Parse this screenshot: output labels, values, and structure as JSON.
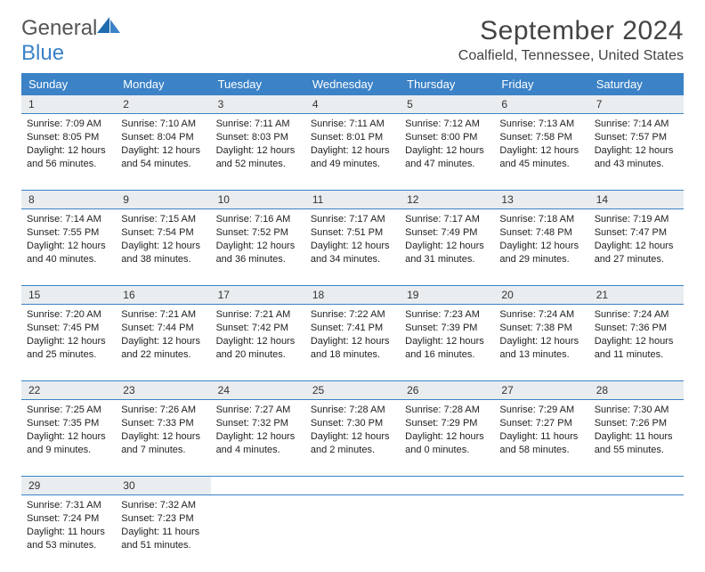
{
  "brand": {
    "part1": "General",
    "part2": "Blue"
  },
  "title": "September 2024",
  "location": "Coalfield, Tennessee, United States",
  "colors": {
    "header_bg": "#3b82c7",
    "header_text": "#ffffff",
    "daynum_bg": "#e9edf0",
    "border": "#3b82c7",
    "text": "#222222",
    "logo_gray": "#555555",
    "logo_blue": "#3b82c7"
  },
  "typography": {
    "title_fontsize": 30,
    "location_fontsize": 16,
    "header_fontsize": 13,
    "daynum_fontsize": 12,
    "detail_fontsize": 11
  },
  "weekday_labels": [
    "Sunday",
    "Monday",
    "Tuesday",
    "Wednesday",
    "Thursday",
    "Friday",
    "Saturday"
  ],
  "weeks": [
    [
      {
        "num": "1",
        "sunrise": "Sunrise: 7:09 AM",
        "sunset": "Sunset: 8:05 PM",
        "daylight": "Daylight: 12 hours and 56 minutes."
      },
      {
        "num": "2",
        "sunrise": "Sunrise: 7:10 AM",
        "sunset": "Sunset: 8:04 PM",
        "daylight": "Daylight: 12 hours and 54 minutes."
      },
      {
        "num": "3",
        "sunrise": "Sunrise: 7:11 AM",
        "sunset": "Sunset: 8:03 PM",
        "daylight": "Daylight: 12 hours and 52 minutes."
      },
      {
        "num": "4",
        "sunrise": "Sunrise: 7:11 AM",
        "sunset": "Sunset: 8:01 PM",
        "daylight": "Daylight: 12 hours and 49 minutes."
      },
      {
        "num": "5",
        "sunrise": "Sunrise: 7:12 AM",
        "sunset": "Sunset: 8:00 PM",
        "daylight": "Daylight: 12 hours and 47 minutes."
      },
      {
        "num": "6",
        "sunrise": "Sunrise: 7:13 AM",
        "sunset": "Sunset: 7:58 PM",
        "daylight": "Daylight: 12 hours and 45 minutes."
      },
      {
        "num": "7",
        "sunrise": "Sunrise: 7:14 AM",
        "sunset": "Sunset: 7:57 PM",
        "daylight": "Daylight: 12 hours and 43 minutes."
      }
    ],
    [
      {
        "num": "8",
        "sunrise": "Sunrise: 7:14 AM",
        "sunset": "Sunset: 7:55 PM",
        "daylight": "Daylight: 12 hours and 40 minutes."
      },
      {
        "num": "9",
        "sunrise": "Sunrise: 7:15 AM",
        "sunset": "Sunset: 7:54 PM",
        "daylight": "Daylight: 12 hours and 38 minutes."
      },
      {
        "num": "10",
        "sunrise": "Sunrise: 7:16 AM",
        "sunset": "Sunset: 7:52 PM",
        "daylight": "Daylight: 12 hours and 36 minutes."
      },
      {
        "num": "11",
        "sunrise": "Sunrise: 7:17 AM",
        "sunset": "Sunset: 7:51 PM",
        "daylight": "Daylight: 12 hours and 34 minutes."
      },
      {
        "num": "12",
        "sunrise": "Sunrise: 7:17 AM",
        "sunset": "Sunset: 7:49 PM",
        "daylight": "Daylight: 12 hours and 31 minutes."
      },
      {
        "num": "13",
        "sunrise": "Sunrise: 7:18 AM",
        "sunset": "Sunset: 7:48 PM",
        "daylight": "Daylight: 12 hours and 29 minutes."
      },
      {
        "num": "14",
        "sunrise": "Sunrise: 7:19 AM",
        "sunset": "Sunset: 7:47 PM",
        "daylight": "Daylight: 12 hours and 27 minutes."
      }
    ],
    [
      {
        "num": "15",
        "sunrise": "Sunrise: 7:20 AM",
        "sunset": "Sunset: 7:45 PM",
        "daylight": "Daylight: 12 hours and 25 minutes."
      },
      {
        "num": "16",
        "sunrise": "Sunrise: 7:21 AM",
        "sunset": "Sunset: 7:44 PM",
        "daylight": "Daylight: 12 hours and 22 minutes."
      },
      {
        "num": "17",
        "sunrise": "Sunrise: 7:21 AM",
        "sunset": "Sunset: 7:42 PM",
        "daylight": "Daylight: 12 hours and 20 minutes."
      },
      {
        "num": "18",
        "sunrise": "Sunrise: 7:22 AM",
        "sunset": "Sunset: 7:41 PM",
        "daylight": "Daylight: 12 hours and 18 minutes."
      },
      {
        "num": "19",
        "sunrise": "Sunrise: 7:23 AM",
        "sunset": "Sunset: 7:39 PM",
        "daylight": "Daylight: 12 hours and 16 minutes."
      },
      {
        "num": "20",
        "sunrise": "Sunrise: 7:24 AM",
        "sunset": "Sunset: 7:38 PM",
        "daylight": "Daylight: 12 hours and 13 minutes."
      },
      {
        "num": "21",
        "sunrise": "Sunrise: 7:24 AM",
        "sunset": "Sunset: 7:36 PM",
        "daylight": "Daylight: 12 hours and 11 minutes."
      }
    ],
    [
      {
        "num": "22",
        "sunrise": "Sunrise: 7:25 AM",
        "sunset": "Sunset: 7:35 PM",
        "daylight": "Daylight: 12 hours and 9 minutes."
      },
      {
        "num": "23",
        "sunrise": "Sunrise: 7:26 AM",
        "sunset": "Sunset: 7:33 PM",
        "daylight": "Daylight: 12 hours and 7 minutes."
      },
      {
        "num": "24",
        "sunrise": "Sunrise: 7:27 AM",
        "sunset": "Sunset: 7:32 PM",
        "daylight": "Daylight: 12 hours and 4 minutes."
      },
      {
        "num": "25",
        "sunrise": "Sunrise: 7:28 AM",
        "sunset": "Sunset: 7:30 PM",
        "daylight": "Daylight: 12 hours and 2 minutes."
      },
      {
        "num": "26",
        "sunrise": "Sunrise: 7:28 AM",
        "sunset": "Sunset: 7:29 PM",
        "daylight": "Daylight: 12 hours and 0 minutes."
      },
      {
        "num": "27",
        "sunrise": "Sunrise: 7:29 AM",
        "sunset": "Sunset: 7:27 PM",
        "daylight": "Daylight: 11 hours and 58 minutes."
      },
      {
        "num": "28",
        "sunrise": "Sunrise: 7:30 AM",
        "sunset": "Sunset: 7:26 PM",
        "daylight": "Daylight: 11 hours and 55 minutes."
      }
    ],
    [
      {
        "num": "29",
        "sunrise": "Sunrise: 7:31 AM",
        "sunset": "Sunset: 7:24 PM",
        "daylight": "Daylight: 11 hours and 53 minutes."
      },
      {
        "num": "30",
        "sunrise": "Sunrise: 7:32 AM",
        "sunset": "Sunset: 7:23 PM",
        "daylight": "Daylight: 11 hours and 51 minutes."
      },
      null,
      null,
      null,
      null,
      null
    ]
  ]
}
